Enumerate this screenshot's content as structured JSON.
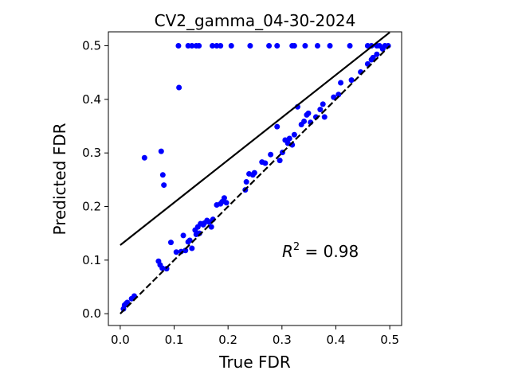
{
  "chart_data": {
    "type": "scatter",
    "title": "CV2_gamma_04-30-2024",
    "xlabel": "True FDR",
    "ylabel": "Predicted FDR",
    "xlim": [
      -0.022,
      0.522
    ],
    "ylim": [
      -0.022,
      0.526
    ],
    "xticks": [
      0.0,
      0.1,
      0.2,
      0.3,
      0.4,
      0.5
    ],
    "xtick_labels": [
      "0.0",
      "0.1",
      "0.2",
      "0.3",
      "0.4",
      "0.5"
    ],
    "yticks": [
      0.0,
      0.1,
      0.2,
      0.3,
      0.4,
      0.5
    ],
    "ytick_labels": [
      "0.0",
      "0.1",
      "0.2",
      "0.3",
      "0.4",
      "0.5"
    ],
    "grid": false,
    "annotation": {
      "prefix": "R",
      "superscript": "2",
      "suffix": " = 0.98"
    },
    "series": [
      {
        "kind": "points",
        "color": "#0000ff",
        "points": [
          [
            0.006,
            0.009
          ],
          [
            0.008,
            0.016
          ],
          [
            0.011,
            0.019
          ],
          [
            0.013,
            0.021
          ],
          [
            0.021,
            0.028
          ],
          [
            0.026,
            0.033
          ],
          [
            0.045,
            0.291
          ],
          [
            0.071,
            0.098
          ],
          [
            0.074,
            0.091
          ],
          [
            0.078,
            0.085
          ],
          [
            0.076,
            0.303
          ],
          [
            0.079,
            0.259
          ],
          [
            0.081,
            0.24
          ],
          [
            0.086,
            0.084
          ],
          [
            0.094,
            0.133
          ],
          [
            0.104,
            0.115
          ],
          [
            0.109,
            0.422
          ],
          [
            0.113,
            0.116
          ],
          [
            0.117,
            0.146
          ],
          [
            0.121,
            0.118
          ],
          [
            0.126,
            0.134
          ],
          [
            0.129,
            0.137
          ],
          [
            0.133,
            0.122
          ],
          [
            0.139,
            0.156
          ],
          [
            0.141,
            0.148
          ],
          [
            0.144,
            0.162
          ],
          [
            0.147,
            0.15
          ],
          [
            0.149,
            0.168
          ],
          [
            0.154,
            0.166
          ],
          [
            0.156,
            0.169
          ],
          [
            0.161,
            0.174
          ],
          [
            0.165,
            0.171
          ],
          [
            0.169,
            0.162
          ],
          [
            0.172,
            0.176
          ],
          [
            0.179,
            0.203
          ],
          [
            0.186,
            0.205
          ],
          [
            0.189,
            0.209
          ],
          [
            0.193,
            0.216
          ],
          [
            0.197,
            0.207
          ],
          [
            0.232,
            0.231
          ],
          [
            0.234,
            0.246
          ],
          [
            0.239,
            0.261
          ],
          [
            0.246,
            0.259
          ],
          [
            0.249,
            0.263
          ],
          [
            0.263,
            0.283
          ],
          [
            0.269,
            0.281
          ],
          [
            0.279,
            0.297
          ],
          [
            0.291,
            0.349
          ],
          [
            0.296,
            0.286
          ],
          [
            0.301,
            0.301
          ],
          [
            0.306,
            0.324
          ],
          [
            0.311,
            0.318
          ],
          [
            0.314,
            0.327
          ],
          [
            0.319,
            0.315
          ],
          [
            0.323,
            0.334
          ],
          [
            0.329,
            0.386
          ],
          [
            0.336,
            0.353
          ],
          [
            0.341,
            0.359
          ],
          [
            0.346,
            0.371
          ],
          [
            0.349,
            0.374
          ],
          [
            0.353,
            0.357
          ],
          [
            0.363,
            0.367
          ],
          [
            0.371,
            0.381
          ],
          [
            0.376,
            0.391
          ],
          [
            0.379,
            0.367
          ],
          [
            0.396,
            0.404
          ],
          [
            0.405,
            0.409
          ],
          [
            0.409,
            0.431
          ],
          [
            0.429,
            0.436
          ],
          [
            0.446,
            0.451
          ],
          [
            0.459,
            0.466
          ],
          [
            0.466,
            0.474
          ],
          [
            0.469,
            0.478
          ],
          [
            0.476,
            0.484
          ],
          [
            0.487,
            0.494
          ],
          [
            0.108,
            0.5
          ],
          [
            0.126,
            0.5
          ],
          [
            0.133,
            0.5
          ],
          [
            0.141,
            0.5
          ],
          [
            0.146,
            0.5
          ],
          [
            0.171,
            0.5
          ],
          [
            0.179,
            0.5
          ],
          [
            0.186,
            0.5
          ],
          [
            0.206,
            0.5
          ],
          [
            0.241,
            0.5
          ],
          [
            0.276,
            0.5
          ],
          [
            0.291,
            0.5
          ],
          [
            0.319,
            0.5
          ],
          [
            0.323,
            0.5
          ],
          [
            0.343,
            0.5
          ],
          [
            0.366,
            0.5
          ],
          [
            0.389,
            0.5
          ],
          [
            0.426,
            0.5
          ],
          [
            0.459,
            0.5
          ],
          [
            0.466,
            0.5
          ],
          [
            0.476,
            0.5
          ],
          [
            0.481,
            0.5
          ],
          [
            0.491,
            0.5
          ],
          [
            0.497,
            0.5
          ]
        ]
      },
      {
        "kind": "line",
        "style": "solid",
        "color": "#000000",
        "points": [
          [
            0.0,
            0.128
          ],
          [
            0.5,
            0.525
          ]
        ]
      },
      {
        "kind": "line",
        "style": "dashed",
        "color": "#000000",
        "points": [
          [
            0.0,
            0.0
          ],
          [
            0.5,
            0.5
          ]
        ]
      }
    ]
  }
}
